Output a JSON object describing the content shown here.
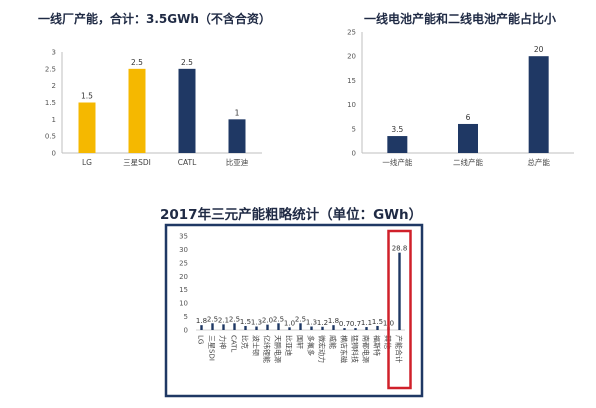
{
  "colors": {
    "yellow": "#F5B800",
    "navy": "#1F3864",
    "frame_navy": "#1F3864",
    "frame_red": "#D0202A"
  },
  "chart_data": [
    {
      "type": "bar",
      "title": "一线厂产能，合计：3.5GWh（不含合资）",
      "categories": [
        "LG",
        "三星SDI",
        "CATL",
        "比亚迪"
      ],
      "values": [
        1.5,
        2.5,
        2.5,
        1
      ],
      "data_labels": [
        "1.5",
        "2.5",
        "2.5",
        "1"
      ],
      "bar_colors": [
        "#F5B800",
        "#F5B800",
        "#1F3864",
        "#1F3864"
      ],
      "ylim": [
        0,
        3
      ],
      "yticks": [
        0,
        0.5,
        1,
        1.5,
        2,
        2.5,
        3
      ],
      "ytick_labels": [
        "0",
        "0.5",
        "1",
        "1.5",
        "2",
        "2.5",
        "3"
      ],
      "grid": false
    },
    {
      "type": "bar",
      "title": "一线电池产能和二线电池产能占比小",
      "categories": [
        "一线产能",
        "二线产能",
        "总产能"
      ],
      "values": [
        3.5,
        6,
        20
      ],
      "data_labels": [
        "3.5",
        "6",
        "20"
      ],
      "bar_colors": [
        "#1F3864",
        "#1F3864",
        "#1F3864"
      ],
      "ylim": [
        0,
        25
      ],
      "yticks": [
        0,
        5,
        10,
        15,
        20,
        25
      ],
      "ytick_labels": [
        "0",
        "5",
        "10",
        "15",
        "20",
        "25"
      ],
      "grid": false
    },
    {
      "type": "bar",
      "title": "2017年三元产能粗略统计（单位：GWh）",
      "categories": [
        "LG",
        "三星SDI",
        "力神",
        "CATL",
        "比克",
        "波士顿",
        "亿纬锂能",
        "天鹏电源",
        "比亚迪",
        "国轩",
        "多氟多",
        "微宏动力",
        "威能",
        "横店东磁",
        "猛狮科技",
        "南都电源",
        "福斯特",
        "其他",
        "产能合计"
      ],
      "values": [
        1.8,
        2.5,
        2.1,
        2.5,
        1.5,
        1.3,
        2.0,
        2.5,
        1.0,
        2.5,
        1.3,
        1.2,
        1.8,
        0.7,
        0.7,
        1.1,
        1.5,
        1.0,
        28.8
      ],
      "data_labels": [
        "1.8",
        "2.5",
        "2.1",
        "2.5",
        "1.5",
        "1.3",
        "2.0",
        "2.5",
        "1.0",
        "2.5",
        "1.3",
        "1.2",
        "1.8",
        "0.7",
        "0.7",
        "1.1",
        "1.5",
        "1.0",
        "28.8"
      ],
      "ylim": [
        0,
        35
      ],
      "yticks": [
        0,
        5,
        10,
        15,
        20,
        25,
        30,
        35
      ],
      "ytick_labels": [
        "0",
        "5",
        "10",
        "15",
        "20",
        "25",
        "30",
        "35"
      ],
      "grid": false,
      "highlight_category": "产能合计"
    }
  ]
}
